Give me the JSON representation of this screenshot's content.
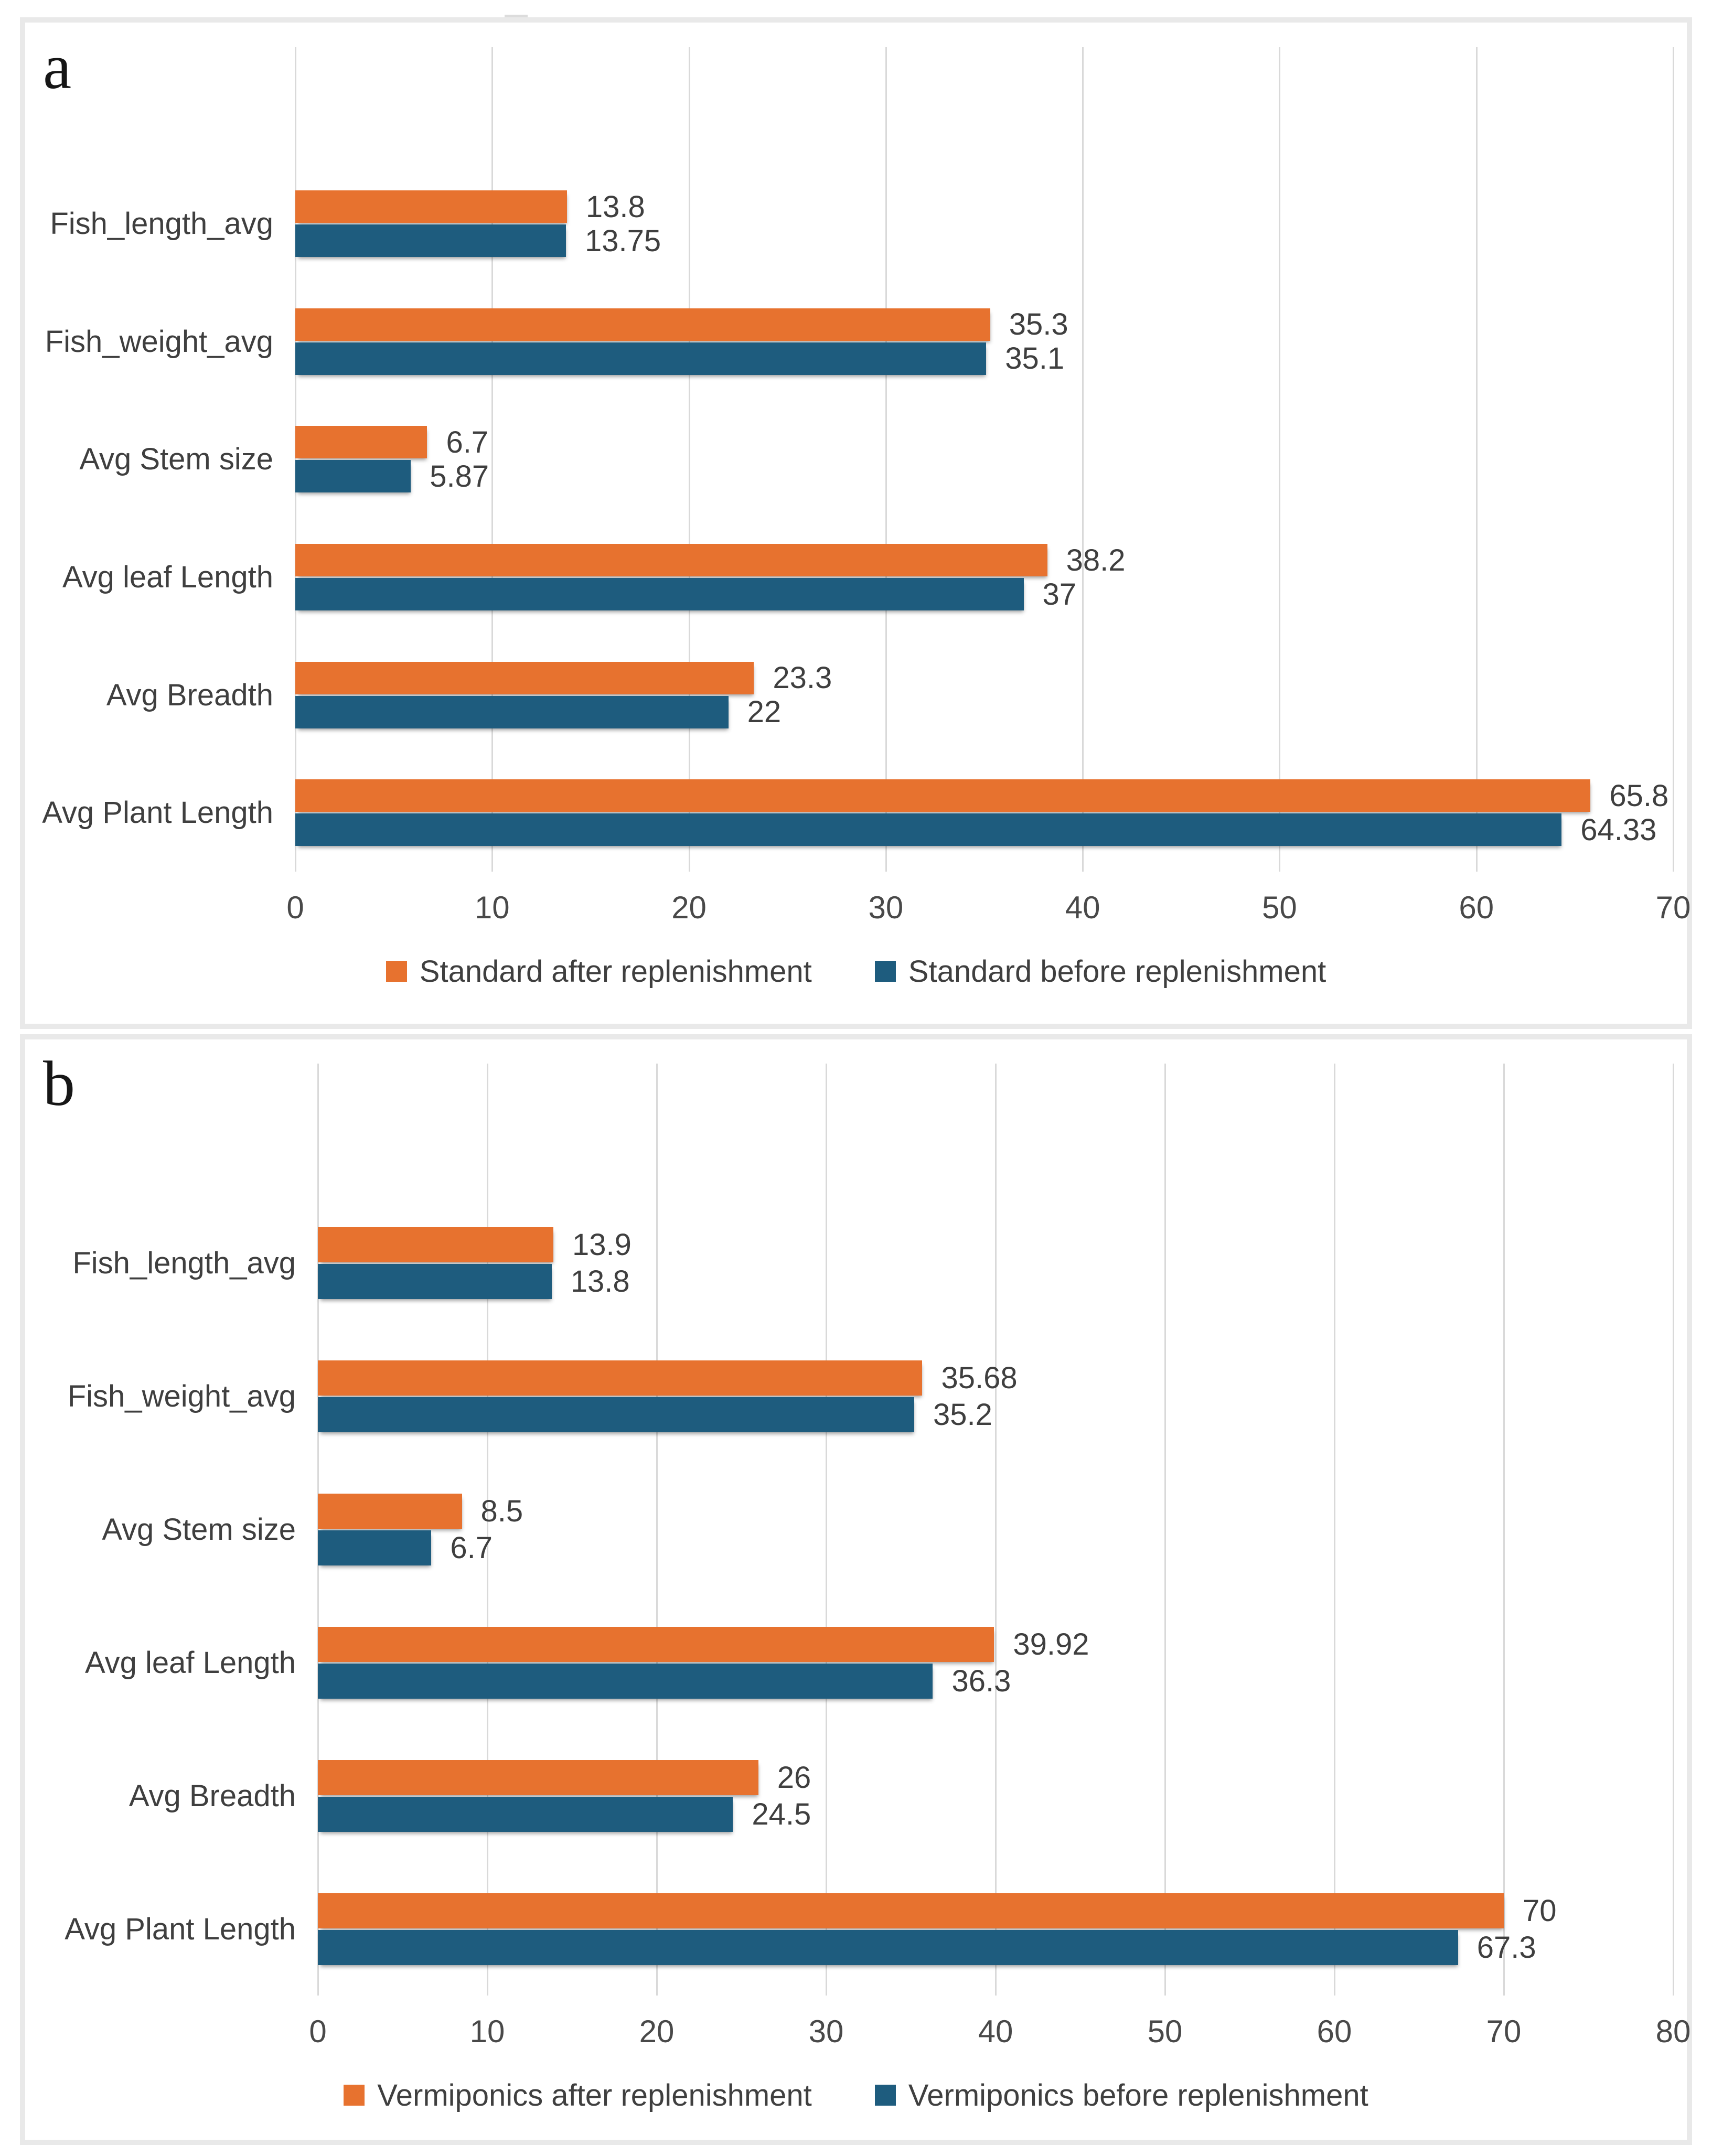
{
  "colors": {
    "after": "#E7722F",
    "before": "#1E5C7E",
    "gridline": "#D9D9D9",
    "text": "#3F3F3F",
    "panel_border": "#E9E9E9"
  },
  "chart_data": [
    {
      "type": "bar",
      "orientation": "horizontal",
      "panel_label": "a",
      "title": "",
      "xlabel": "",
      "ylabel": "",
      "grid": true,
      "legend_position": "bottom",
      "xlim": [
        0,
        70
      ],
      "ticks": [
        "0",
        "10",
        "20",
        "30",
        "40",
        "50",
        "60",
        "70"
      ],
      "categories": [
        "Fish_length_avg",
        "Fish_weight_avg",
        "Avg Stem size",
        "Avg leaf Length",
        "Avg Breadth",
        "Avg Plant Length"
      ],
      "series": [
        {
          "name": "Standard after replenishment",
          "color_key": "after",
          "values": [
            13.8,
            35.3,
            6.7,
            38.2,
            23.3,
            65.8
          ],
          "labels": [
            "13.8",
            "35.3",
            "6.7",
            "38.2",
            "23.3",
            "65.8"
          ]
        },
        {
          "name": "Standard before replenishment",
          "color_key": "before",
          "values": [
            13.75,
            35.1,
            5.87,
            37,
            22,
            64.33
          ],
          "labels": [
            "13.75",
            "35.1",
            "5.87",
            "37",
            "22",
            "64.33"
          ]
        }
      ]
    },
    {
      "type": "bar",
      "orientation": "horizontal",
      "panel_label": "b",
      "title": "",
      "xlabel": "",
      "ylabel": "",
      "grid": true,
      "legend_position": "bottom",
      "xlim": [
        0,
        80
      ],
      "ticks": [
        "0",
        "10",
        "20",
        "30",
        "40",
        "50",
        "60",
        "70",
        "80"
      ],
      "categories": [
        "Fish_length_avg",
        "Fish_weight_avg",
        "Avg Stem size",
        "Avg leaf Length",
        "Avg Breadth",
        "Avg Plant Length"
      ],
      "series": [
        {
          "name": "Vermiponics after replenishment",
          "color_key": "after",
          "values": [
            13.9,
            35.68,
            8.5,
            39.92,
            26,
            70
          ],
          "labels": [
            "13.9",
            "35.68",
            "8.5",
            "39.92",
            "26",
            "70"
          ]
        },
        {
          "name": "Vermiponics before replenishment",
          "color_key": "before",
          "values": [
            13.8,
            35.2,
            6.7,
            36.3,
            24.5,
            67.3
          ],
          "labels": [
            "13.8",
            "35.2",
            "6.7",
            "36.3",
            "24.5",
            "67.3"
          ]
        }
      ]
    }
  ]
}
